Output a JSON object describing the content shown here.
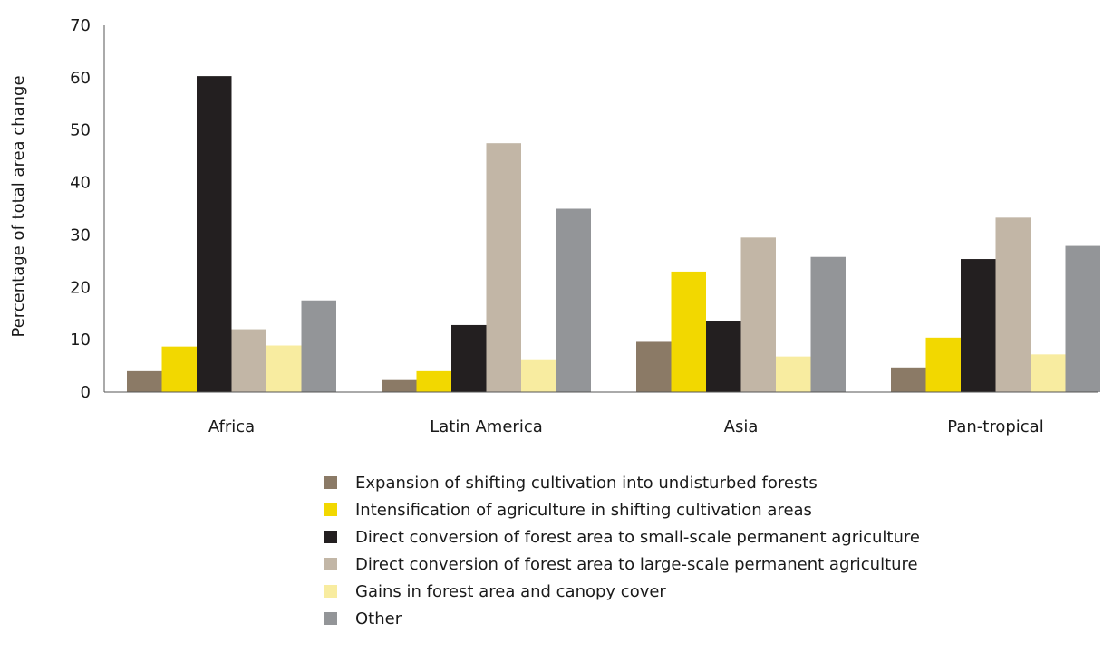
{
  "chart_data": {
    "type": "bar",
    "title": "",
    "xlabel": "",
    "ylabel": "Percentage of total area change",
    "ylim": [
      0,
      70
    ],
    "yticks": [
      0,
      10,
      20,
      30,
      40,
      50,
      60,
      70
    ],
    "grid": false,
    "legend_position": "bottom",
    "categories": [
      "Africa",
      "Latin America",
      "Asia",
      "Pan-tropical"
    ],
    "series": [
      {
        "name": "Expansion of shifting cultivation into undisturbed forests",
        "color": "#8b7a66",
        "values": [
          4.0,
          2.3,
          9.6,
          4.7
        ]
      },
      {
        "name": "Intensification of agriculture in shifting cultivation areas",
        "color": "#f2d800",
        "values": [
          8.7,
          4.0,
          23.0,
          10.4
        ]
      },
      {
        "name": "Direct conversion of forest area to small-scale permanent agriculture",
        "color": "#231f20",
        "values": [
          60.3,
          12.8,
          13.5,
          25.4
        ]
      },
      {
        "name": "Direct conversion of forest area to large-scale permanent agriculture",
        "color": "#c2b6a6",
        "values": [
          12.0,
          47.5,
          29.5,
          33.3
        ]
      },
      {
        "name": "Gains in forest area and canopy cover",
        "color": "#f8eca0",
        "values": [
          8.9,
          6.1,
          6.8,
          7.2
        ]
      },
      {
        "name": "Other",
        "color": "#939598",
        "values": [
          17.5,
          35.0,
          25.8,
          27.9
        ]
      }
    ]
  }
}
